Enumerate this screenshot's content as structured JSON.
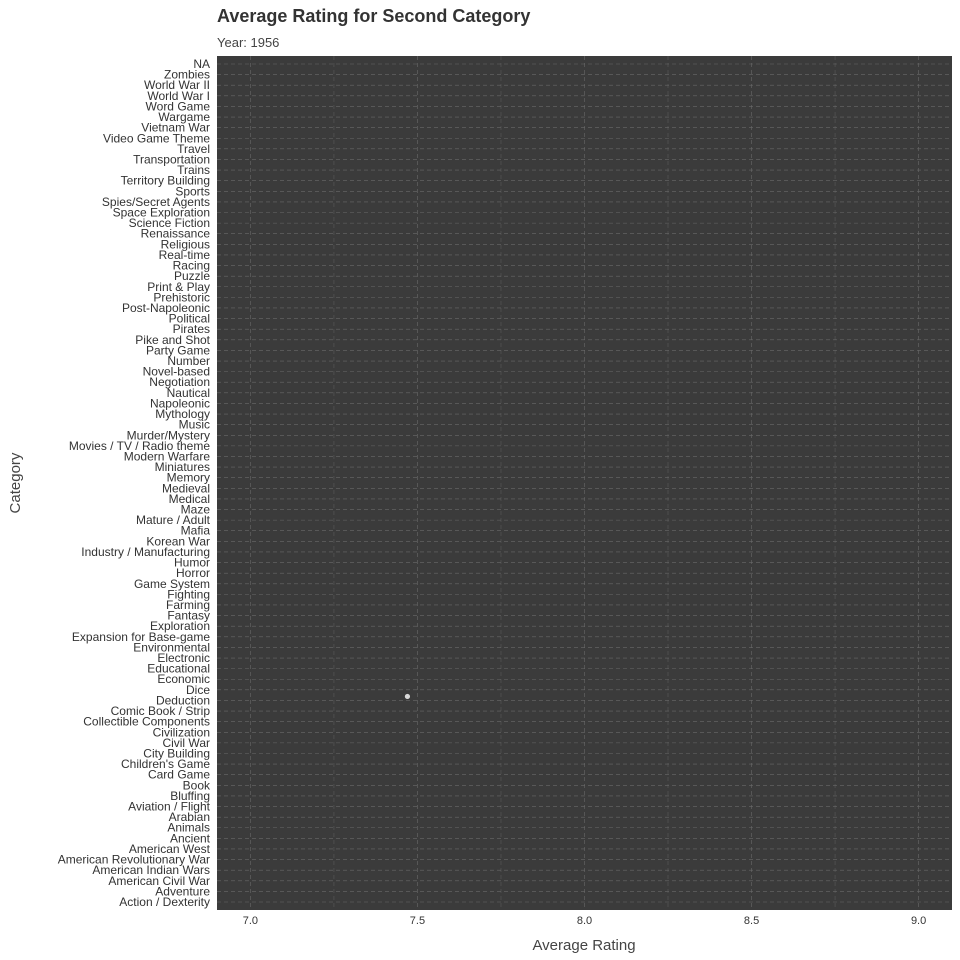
{
  "chart_data": {
    "type": "scatter",
    "title": "Average Rating for Second Category",
    "subtitle": "Year: 1956",
    "xlabel": "Average Rating",
    "ylabel": "Category",
    "xlim": [
      6.9,
      9.1
    ],
    "x_ticks": [
      7.0,
      7.5,
      8.0,
      8.5,
      9.0
    ],
    "x_tick_labels": [
      "7.0",
      "7.5",
      "8.0",
      "8.5",
      "9.0"
    ],
    "grid": true,
    "panel_color": "#3b3b3b",
    "grid_color": "#6a6a6a",
    "point_color": "#d9d9d9",
    "categories": [
      "Action / Dexterity",
      "Adventure",
      "American Civil War",
      "American Indian Wars",
      "American Revolutionary War",
      "American West",
      "Ancient",
      "Animals",
      "Arabian",
      "Aviation / Flight",
      "Bluffing",
      "Book",
      "Card Game",
      "Children's Game",
      "City Building",
      "Civil War",
      "Civilization",
      "Collectible Components",
      "Comic Book / Strip",
      "Deduction",
      "Dice",
      "Economic",
      "Educational",
      "Electronic",
      "Environmental",
      "Expansion for Base-game",
      "Exploration",
      "Fantasy",
      "Farming",
      "Fighting",
      "Game System",
      "Horror",
      "Humor",
      "Industry / Manufacturing",
      "Korean War",
      "Mafia",
      "Mature / Adult",
      "Maze",
      "Medical",
      "Medieval",
      "Memory",
      "Miniatures",
      "Modern Warfare",
      "Movies / TV / Radio theme",
      "Murder/Mystery",
      "Music",
      "Mythology",
      "Napoleonic",
      "Nautical",
      "Negotiation",
      "Novel-based",
      "Number",
      "Party Game",
      "Pike and Shot",
      "Pirates",
      "Political",
      "Post-Napoleonic",
      "Prehistoric",
      "Print & Play",
      "Puzzle",
      "Racing",
      "Real-time",
      "Religious",
      "Renaissance",
      "Science Fiction",
      "Space Exploration",
      "Spies/Secret Agents",
      "Sports",
      "Territory Building",
      "Trains",
      "Transportation",
      "Travel",
      "Video Game Theme",
      "Vietnam War",
      "Wargame",
      "Word Game",
      "World War I",
      "World War II",
      "Zombies",
      "NA"
    ],
    "points": [
      {
        "category": "Deduction",
        "x": 7.47
      }
    ]
  }
}
